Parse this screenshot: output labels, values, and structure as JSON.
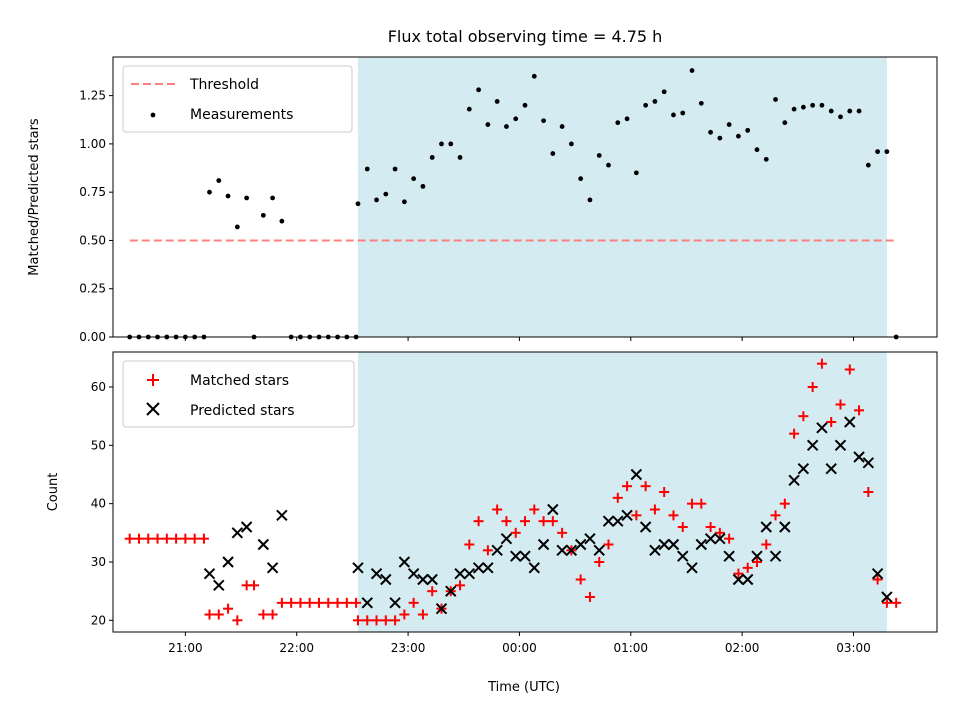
{
  "chart_data": [
    {
      "type": "scatter",
      "title": "Flux total observing time = 4.75 h",
      "xlabel": "",
      "ylabel": "Matched/Predicted stars",
      "ylim": [
        0,
        1.45
      ],
      "yticks": [
        0.0,
        0.25,
        0.5,
        0.75,
        1.0,
        1.25
      ],
      "ytick_labels": [
        "0.00",
        "0.25",
        "0.50",
        "0.75",
        "1.00",
        "1.25"
      ],
      "x_range_hours": [
        "20:21",
        "03:45"
      ],
      "xtick_hours": [
        "21:00",
        "22:00",
        "23:00",
        "00:00",
        "01:00",
        "02:00",
        "03:00"
      ],
      "grid": false,
      "legend_position": "top-left",
      "observing_window": {
        "start": "22:33",
        "end": "03:18",
        "color": "#d4ebf1"
      },
      "threshold": {
        "name": "Threshold",
        "value": 0.5,
        "x_start": "20:30",
        "x_end": "03:22",
        "color": "#ff7f7f"
      },
      "series": [
        {
          "name": "Measurements",
          "color": "#000000",
          "points": [
            [
              "20:30",
              0
            ],
            [
              "20:35",
              0
            ],
            [
              "20:40",
              0
            ],
            [
              "20:45",
              0
            ],
            [
              "20:50",
              0
            ],
            [
              "20:55",
              0
            ],
            [
              "21:00",
              0
            ],
            [
              "21:05",
              0
            ],
            [
              "21:10",
              0
            ],
            [
              "21:13",
              0.75
            ],
            [
              "21:18",
              0.81
            ],
            [
              "21:23",
              0.73
            ],
            [
              "21:28",
              0.57
            ],
            [
              "21:33",
              0.72
            ],
            [
              "21:37",
              0
            ],
            [
              "21:42",
              0.63
            ],
            [
              "21:47",
              0.72
            ],
            [
              "21:52",
              0.6
            ],
            [
              "21:57",
              0
            ],
            [
              "22:02",
              0
            ],
            [
              "22:07",
              0
            ],
            [
              "22:12",
              0
            ],
            [
              "22:17",
              0
            ],
            [
              "22:22",
              0
            ],
            [
              "22:27",
              0
            ],
            [
              "22:32",
              0
            ],
            [
              "22:33",
              0.69
            ],
            [
              "22:38",
              0.87
            ],
            [
              "22:43",
              0.71
            ],
            [
              "22:48",
              0.74
            ],
            [
              "22:53",
              0.87
            ],
            [
              "22:58",
              0.7
            ],
            [
              "23:03",
              0.82
            ],
            [
              "23:08",
              0.78
            ],
            [
              "23:13",
              0.93
            ],
            [
              "23:18",
              1.0
            ],
            [
              "23:23",
              1.0
            ],
            [
              "23:28",
              0.93
            ],
            [
              "23:33",
              1.18
            ],
            [
              "23:38",
              1.28
            ],
            [
              "23:43",
              1.1
            ],
            [
              "23:48",
              1.22
            ],
            [
              "23:53",
              1.09
            ],
            [
              "23:58",
              1.13
            ],
            [
              "00:03",
              1.2
            ],
            [
              "00:08",
              1.35
            ],
            [
              "00:13",
              1.12
            ],
            [
              "00:18",
              0.95
            ],
            [
              "00:23",
              1.09
            ],
            [
              "00:28",
              1.0
            ],
            [
              "00:33",
              0.82
            ],
            [
              "00:38",
              0.71
            ],
            [
              "00:43",
              0.94
            ],
            [
              "00:48",
              0.89
            ],
            [
              "00:53",
              1.11
            ],
            [
              "00:58",
              1.13
            ],
            [
              "01:03",
              0.85
            ],
            [
              "01:08",
              1.2
            ],
            [
              "01:13",
              1.22
            ],
            [
              "01:18",
              1.27
            ],
            [
              "01:23",
              1.15
            ],
            [
              "01:28",
              1.16
            ],
            [
              "01:33",
              1.38
            ],
            [
              "01:38",
              1.21
            ],
            [
              "01:43",
              1.06
            ],
            [
              "01:48",
              1.03
            ],
            [
              "01:53",
              1.1
            ],
            [
              "01:58",
              1.04
            ],
            [
              "02:03",
              1.07
            ],
            [
              "02:08",
              0.97
            ],
            [
              "02:13",
              0.92
            ],
            [
              "02:18",
              1.23
            ],
            [
              "02:23",
              1.11
            ],
            [
              "02:28",
              1.18
            ],
            [
              "02:33",
              1.19
            ],
            [
              "02:38",
              1.2
            ],
            [
              "02:43",
              1.2
            ],
            [
              "02:48",
              1.17
            ],
            [
              "02:53",
              1.14
            ],
            [
              "02:58",
              1.17
            ],
            [
              "03:03",
              1.17
            ],
            [
              "03:08",
              0.89
            ],
            [
              "03:13",
              0.96
            ],
            [
              "03:18",
              0.96
            ],
            [
              "03:23",
              0
            ]
          ]
        }
      ]
    },
    {
      "type": "scatter",
      "title": "",
      "xlabel": "Time (UTC)",
      "ylabel": "Count",
      "ylim": [
        18,
        66
      ],
      "yticks": [
        20,
        30,
        40,
        50,
        60
      ],
      "ytick_labels": [
        "20",
        "30",
        "40",
        "50",
        "60"
      ],
      "x_range_hours": [
        "20:21",
        "03:45"
      ],
      "xtick_hours": [
        "21:00",
        "22:00",
        "23:00",
        "00:00",
        "01:00",
        "02:00",
        "03:00"
      ],
      "xtick_labels": [
        "21:00",
        "22:00",
        "23:00",
        "00:00",
        "01:00",
        "02:00",
        "03:00"
      ],
      "grid": false,
      "legend_position": "top-left",
      "observing_window": {
        "start": "22:33",
        "end": "03:18",
        "color": "#d4ebf1"
      },
      "series": [
        {
          "name": "Matched stars",
          "marker": "plus",
          "color": "#ff0000",
          "points": [
            [
              "20:30",
              34
            ],
            [
              "20:35",
              34
            ],
            [
              "20:40",
              34
            ],
            [
              "20:45",
              34
            ],
            [
              "20:50",
              34
            ],
            [
              "20:55",
              34
            ],
            [
              "21:00",
              34
            ],
            [
              "21:05",
              34
            ],
            [
              "21:10",
              34
            ],
            [
              "21:13",
              21
            ],
            [
              "21:18",
              21
            ],
            [
              "21:23",
              22
            ],
            [
              "21:28",
              20
            ],
            [
              "21:33",
              26
            ],
            [
              "21:37",
              26
            ],
            [
              "21:42",
              21
            ],
            [
              "21:47",
              21
            ],
            [
              "21:52",
              23
            ],
            [
              "21:57",
              23
            ],
            [
              "22:02",
              23
            ],
            [
              "22:07",
              23
            ],
            [
              "22:12",
              23
            ],
            [
              "22:17",
              23
            ],
            [
              "22:22",
              23
            ],
            [
              "22:27",
              23
            ],
            [
              "22:32",
              23
            ],
            [
              "22:33",
              20
            ],
            [
              "22:38",
              20
            ],
            [
              "22:43",
              20
            ],
            [
              "22:48",
              20
            ],
            [
              "22:53",
              20
            ],
            [
              "22:58",
              21
            ],
            [
              "23:03",
              23
            ],
            [
              "23:08",
              21
            ],
            [
              "23:13",
              25
            ],
            [
              "23:18",
              22
            ],
            [
              "23:23",
              25
            ],
            [
              "23:28",
              26
            ],
            [
              "23:33",
              33
            ],
            [
              "23:38",
              37
            ],
            [
              "23:43",
              32
            ],
            [
              "23:48",
              39
            ],
            [
              "23:53",
              37
            ],
            [
              "23:58",
              35
            ],
            [
              "00:03",
              37
            ],
            [
              "00:08",
              39
            ],
            [
              "00:13",
              37
            ],
            [
              "00:18",
              37
            ],
            [
              "00:23",
              35
            ],
            [
              "00:28",
              32
            ],
            [
              "00:33",
              27
            ],
            [
              "00:38",
              24
            ],
            [
              "00:43",
              30
            ],
            [
              "00:48",
              33
            ],
            [
              "00:53",
              41
            ],
            [
              "00:58",
              43
            ],
            [
              "01:03",
              38
            ],
            [
              "01:08",
              43
            ],
            [
              "01:13",
              39
            ],
            [
              "01:18",
              42
            ],
            [
              "01:23",
              38
            ],
            [
              "01:28",
              36
            ],
            [
              "01:33",
              40
            ],
            [
              "01:38",
              40
            ],
            [
              "01:43",
              36
            ],
            [
              "01:48",
              35
            ],
            [
              "01:53",
              34
            ],
            [
              "01:58",
              28
            ],
            [
              "02:03",
              29
            ],
            [
              "02:08",
              30
            ],
            [
              "02:13",
              33
            ],
            [
              "02:18",
              38
            ],
            [
              "02:23",
              40
            ],
            [
              "02:28",
              52
            ],
            [
              "02:33",
              55
            ],
            [
              "02:38",
              60
            ],
            [
              "02:43",
              64
            ],
            [
              "02:48",
              54
            ],
            [
              "02:53",
              57
            ],
            [
              "02:58",
              63
            ],
            [
              "03:03",
              56
            ],
            [
              "03:08",
              42
            ],
            [
              "03:13",
              27
            ],
            [
              "03:18",
              23
            ],
            [
              "03:23",
              23
            ]
          ]
        },
        {
          "name": "Predicted stars",
          "marker": "x",
          "color": "#000000",
          "points": [
            [
              "21:13",
              28
            ],
            [
              "21:18",
              26
            ],
            [
              "21:23",
              30
            ],
            [
              "21:28",
              35
            ],
            [
              "21:33",
              36
            ],
            [
              "21:42",
              33
            ],
            [
              "21:47",
              29
            ],
            [
              "21:52",
              38
            ],
            [
              "22:33",
              29
            ],
            [
              "22:38",
              23
            ],
            [
              "22:43",
              28
            ],
            [
              "22:48",
              27
            ],
            [
              "22:53",
              23
            ],
            [
              "22:58",
              30
            ],
            [
              "23:03",
              28
            ],
            [
              "23:08",
              27
            ],
            [
              "23:13",
              27
            ],
            [
              "23:18",
              22
            ],
            [
              "23:23",
              25
            ],
            [
              "23:28",
              28
            ],
            [
              "23:33",
              28
            ],
            [
              "23:38",
              29
            ],
            [
              "23:43",
              29
            ],
            [
              "23:48",
              32
            ],
            [
              "23:53",
              34
            ],
            [
              "23:58",
              31
            ],
            [
              "00:03",
              31
            ],
            [
              "00:08",
              29
            ],
            [
              "00:13",
              33
            ],
            [
              "00:18",
              39
            ],
            [
              "00:23",
              32
            ],
            [
              "00:28",
              32
            ],
            [
              "00:33",
              33
            ],
            [
              "00:38",
              34
            ],
            [
              "00:43",
              32
            ],
            [
              "00:48",
              37
            ],
            [
              "00:53",
              37
            ],
            [
              "00:58",
              38
            ],
            [
              "01:03",
              45
            ],
            [
              "01:08",
              36
            ],
            [
              "01:13",
              32
            ],
            [
              "01:18",
              33
            ],
            [
              "01:23",
              33
            ],
            [
              "01:28",
              31
            ],
            [
              "01:33",
              29
            ],
            [
              "01:38",
              33
            ],
            [
              "01:43",
              34
            ],
            [
              "01:48",
              34
            ],
            [
              "01:53",
              31
            ],
            [
              "01:58",
              27
            ],
            [
              "02:03",
              27
            ],
            [
              "02:08",
              31
            ],
            [
              "02:13",
              36
            ],
            [
              "02:18",
              31
            ],
            [
              "02:23",
              36
            ],
            [
              "02:28",
              44
            ],
            [
              "02:33",
              46
            ],
            [
              "02:38",
              50
            ],
            [
              "02:43",
              53
            ],
            [
              "02:48",
              46
            ],
            [
              "02:53",
              50
            ],
            [
              "02:58",
              54
            ],
            [
              "03:03",
              48
            ],
            [
              "03:08",
              47
            ],
            [
              "03:13",
              28
            ],
            [
              "03:18",
              24
            ]
          ]
        }
      ]
    }
  ]
}
